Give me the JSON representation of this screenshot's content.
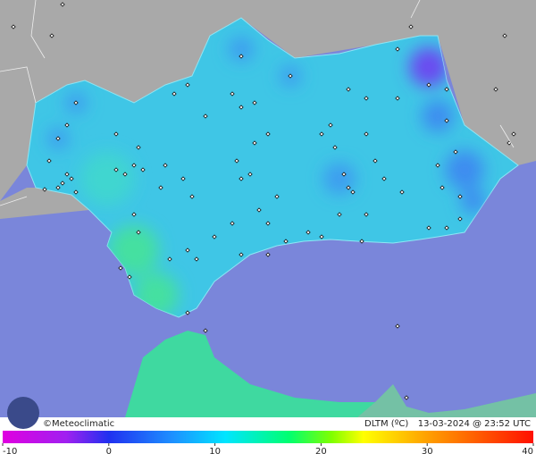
{
  "map": {
    "credit": "©Meteoclimatic",
    "variable": "DLTM (ºC)",
    "timestamp": "13-03-2024 @ 23:52 UTC"
  },
  "colorbar": {
    "range": [
      -10,
      40
    ],
    "ticks": [
      -10,
      0,
      10,
      20,
      30,
      40
    ]
  }
}
